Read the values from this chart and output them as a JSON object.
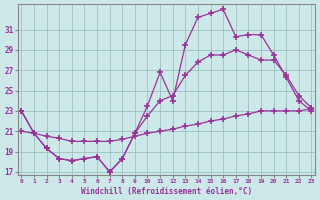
{
  "xlabel": "Windchill (Refroidissement éolien,°C)",
  "bg_color": "#cce8e8",
  "grid_color": "#9bbfbf",
  "line_color": "#993399",
  "spine_color": "#888888",
  "x_min": 0,
  "x_max": 23,
  "y_min": 17,
  "y_max": 33,
  "yticks": [
    17,
    19,
    21,
    23,
    25,
    27,
    29,
    31
  ],
  "line1_x": [
    0,
    1,
    2,
    3,
    4,
    5,
    6,
    7,
    8,
    9,
    10,
    11,
    12,
    13,
    14,
    15,
    16,
    17,
    18,
    19,
    20,
    21,
    22,
    23
  ],
  "line1_y": [
    23.0,
    20.8,
    19.3,
    18.3,
    18.1,
    18.3,
    18.5,
    17.0,
    18.3,
    20.8,
    23.5,
    26.8,
    24.0,
    29.5,
    32.2,
    32.6,
    33.0,
    30.3,
    30.5,
    30.5,
    28.5,
    26.3,
    24.0,
    23.0
  ],
  "line2_x": [
    0,
    1,
    2,
    3,
    4,
    5,
    6,
    7,
    8,
    9,
    10,
    11,
    12,
    13,
    14,
    15,
    16,
    17,
    18,
    19,
    20,
    21,
    22,
    23
  ],
  "line2_y": [
    23.0,
    20.8,
    19.3,
    18.3,
    18.1,
    18.3,
    18.5,
    17.0,
    18.3,
    20.8,
    22.5,
    24.0,
    24.5,
    26.5,
    27.8,
    28.5,
    28.5,
    29.0,
    28.5,
    28.0,
    28.0,
    26.5,
    24.5,
    23.3
  ],
  "line3_x": [
    0,
    1,
    2,
    3,
    4,
    5,
    6,
    7,
    8,
    9,
    10,
    11,
    12,
    13,
    14,
    15,
    16,
    17,
    18,
    19,
    20,
    21,
    22,
    23
  ],
  "line3_y": [
    21.0,
    20.8,
    20.5,
    20.3,
    20.0,
    20.0,
    20.0,
    20.0,
    20.2,
    20.5,
    20.8,
    21.0,
    21.2,
    21.5,
    21.7,
    22.0,
    22.2,
    22.5,
    22.7,
    23.0,
    23.0,
    23.0,
    23.0,
    23.2
  ]
}
